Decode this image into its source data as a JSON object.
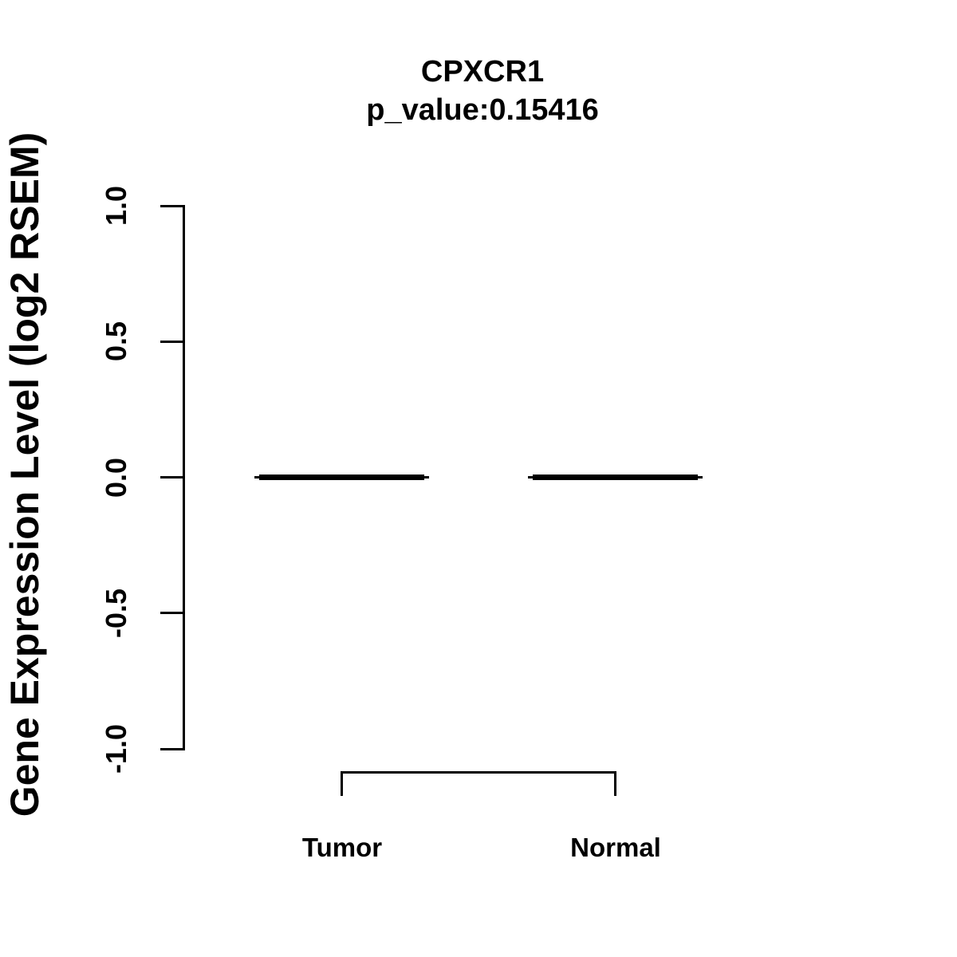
{
  "title": {
    "line1": "CPXCR1",
    "line2": "p_value:0.15416"
  },
  "y_axis": {
    "label": "Gene Expression Level (log2 RSEM)",
    "tick_labels": [
      "1.0",
      "0.5",
      "0.0",
      "-0.5",
      "-1.0"
    ]
  },
  "x_axis": {
    "categories": [
      "Tumor",
      "Normal"
    ]
  },
  "chart_data": {
    "type": "boxplot",
    "title": "CPXCR1",
    "subtitle": "p_value:0.15416",
    "gene": "CPXCR1",
    "p_value": 0.15416,
    "categories": [
      "Tumor",
      "Normal"
    ],
    "series": [
      {
        "name": "Tumor",
        "median": 0.0,
        "q1": 0.0,
        "q3": 0.0,
        "whisker_low": 0.0,
        "whisker_high": 0.0
      },
      {
        "name": "Normal",
        "median": 0.0,
        "q1": 0.0,
        "q3": 0.0,
        "whisker_low": 0.0,
        "whisker_high": 0.0
      }
    ],
    "ylabel": "Gene Expression Level (log2 RSEM)",
    "xlabel": "",
    "ylim": [
      -1.0,
      1.0
    ],
    "yticks": [
      1.0,
      0.5,
      0.0,
      -0.5,
      -1.0
    ],
    "grid": false,
    "legend": "none",
    "comparison_bracket": {
      "from": "Tumor",
      "to": "Normal"
    }
  },
  "colors": {
    "foreground": "#000000",
    "background": "#ffffff"
  }
}
